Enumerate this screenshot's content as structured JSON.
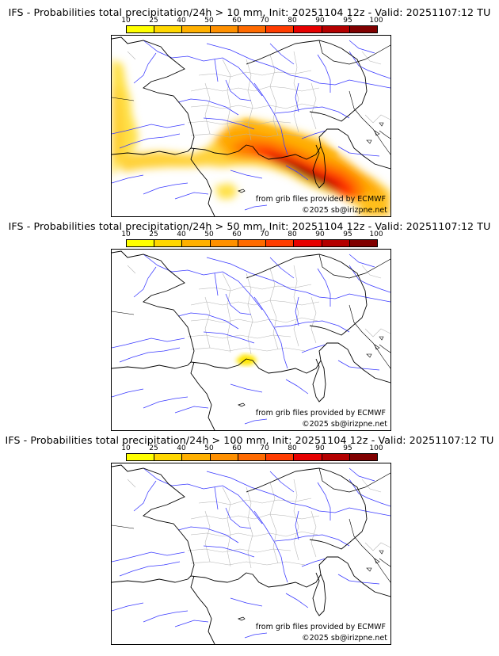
{
  "colorbar": {
    "labels": [
      "10",
      "25",
      "40",
      "50",
      "60",
      "70",
      "80",
      "90",
      "95",
      "100"
    ],
    "colors": [
      "#ffff00",
      "#ffd700",
      "#ffb000",
      "#ff9000",
      "#ff6a00",
      "#ff3c00",
      "#e60000",
      "#b40000",
      "#800000",
      "#4a0000"
    ]
  },
  "credits": {
    "source": "from grib files provided by ECMWF",
    "copyright": "©2025 sb@irizpne.net"
  },
  "panels": [
    {
      "title": "IFS - Probabilities total precipitation/24h > 10 mm, Init: 20251104 12z - Valid: 20251107:12 TU",
      "threshold_mm": 10
    },
    {
      "title": "IFS - Probabilities total precipitation/24h > 50 mm, Init: 20251104 12z - Valid: 20251107:12 TU",
      "threshold_mm": 50
    },
    {
      "title": "IFS - Probabilities total precipitation/24h > 100 mm, Init: 20251104 12z - Valid: 20251107:12 TU",
      "threshold_mm": 100
    }
  ]
}
